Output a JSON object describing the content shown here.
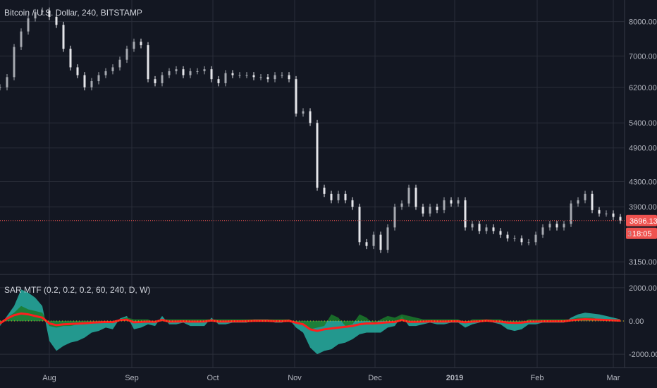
{
  "header": {
    "title": "Bitcoin / U.S. Dollar, 240, BITSTAMP"
  },
  "colors": {
    "background": "#131722",
    "grid": "#2a2e39",
    "candle_up": "#a6a9b0",
    "candle_down": "#e5e6ea",
    "price_line": "#ef5350",
    "price_tag": "#ef5350",
    "sar_teal": "#26a69a",
    "sar_green": "#1b7a2a",
    "sar_red": "#ff1e1e",
    "sar_yellow": "#d4c21b"
  },
  "price_tags": {
    "last_price": "3696.13",
    "countdown": "18:05",
    "partial_label": "3"
  },
  "indicator": {
    "label": "SAR MTF (0.2, 0.2, 0.2, 60, 240, D, W)"
  },
  "chart_data": [
    {
      "type": "line",
      "title": "Bitcoin / U.S. Dollar, 240, BITSTAMP",
      "xlabel": "",
      "ylabel": "",
      "ylim": [
        3000,
        8700
      ],
      "yticks": [
        "8000.00",
        "7000.00",
        "6200.00",
        "5400.00",
        "4900.00",
        "4300.00",
        "3900.00",
        "3150.00"
      ],
      "ytick_values": [
        8000,
        7000,
        6200,
        5400,
        4900,
        4300,
        3900,
        3150
      ],
      "xticks": [
        "Aug",
        "Sep",
        "Oct",
        "Nov",
        "Dec",
        "2019",
        "Feb",
        "Mar"
      ],
      "last_price": 3696.13,
      "series": [
        {
          "values": [
            6200,
            6450,
            7250,
            7700,
            8100,
            8300,
            8350,
            8150,
            7900,
            7200,
            6700,
            6500,
            6200,
            6350,
            6500,
            6600,
            6700,
            6900,
            7200,
            7400,
            7300,
            6400,
            6300,
            6500,
            6600,
            6650,
            6500,
            6600,
            6600,
            6650,
            6400,
            6300,
            6550,
            6500,
            6500,
            6500,
            6450,
            6450,
            6400,
            6500,
            6500,
            6400,
            5600,
            5650,
            5400,
            4200,
            4100,
            4000,
            4100,
            4000,
            3900,
            3400,
            3350,
            3500,
            3300,
            3600,
            3900,
            3950,
            4200,
            3900,
            3800,
            3900,
            3850,
            4000,
            3950,
            4000,
            3600,
            3650,
            3550,
            3600,
            3550,
            3500,
            3450,
            3450,
            3400,
            3400,
            3500,
            3600,
            3650,
            3600,
            3650,
            3950,
            4000,
            4100,
            3850,
            3800,
            3800,
            3750,
            3696
          ]
        }
      ]
    },
    {
      "type": "area",
      "title": "SAR MTF (0.2, 0.2, 0.2, 60, 240, D, W)",
      "xlabel": "",
      "ylabel": "",
      "ylim": [
        -2800,
        2800
      ],
      "yticks": [
        "2000.00",
        "0.00",
        "-2000.00"
      ],
      "ytick_values": [
        2000,
        0,
        -2000
      ],
      "series": [
        {
          "name": "teal",
          "values": [
            -300,
            300,
            900,
            1900,
            1700,
            1400,
            900,
            -1200,
            -1800,
            -1500,
            -1300,
            -1200,
            -1000,
            -700,
            -600,
            -400,
            -500,
            150,
            300,
            -500,
            -400,
            -200,
            -300,
            300,
            -200,
            -200,
            -100,
            -300,
            -300,
            -300,
            200,
            -200,
            -200,
            -100,
            -100,
            -100,
            100,
            100,
            100,
            -100,
            -100,
            100,
            -400,
            -700,
            -1600,
            -2000,
            -1800,
            -1700,
            -1400,
            -1300,
            -1100,
            -800,
            -700,
            -700,
            -700,
            -400,
            -300,
            300,
            -300,
            -300,
            -200,
            -100,
            -200,
            -200,
            -100,
            -100,
            -400,
            -200,
            -100,
            100,
            -100,
            -200,
            -500,
            -600,
            -500,
            -200,
            -200,
            -100,
            -100,
            -100,
            -100,
            200,
            400,
            500,
            450,
            400,
            300,
            200,
            100
          ]
        },
        {
          "name": "green",
          "values": [
            -200,
            200,
            500,
            900,
            700,
            600,
            500,
            -300,
            -400,
            -300,
            -300,
            -200,
            -200,
            -150,
            -100,
            -100,
            -100,
            100,
            200,
            100,
            100,
            100,
            -100,
            100,
            100,
            100,
            100,
            100,
            100,
            100,
            100,
            100,
            100,
            100,
            100,
            100,
            100,
            100,
            100,
            100,
            100,
            100,
            -100,
            -200,
            -500,
            -400,
            -300,
            400,
            200,
            -300,
            -200,
            400,
            200,
            -200,
            100,
            300,
            200,
            400,
            300,
            200,
            100,
            100,
            100,
            100,
            100,
            100,
            -100,
            100,
            100,
            100,
            100,
            100,
            -100,
            -100,
            -100,
            100,
            100,
            100,
            100,
            100,
            100,
            100,
            200,
            200,
            200,
            100,
            100,
            100,
            100
          ]
        },
        {
          "name": "red",
          "values": [
            -150,
            150,
            350,
            450,
            400,
            300,
            200,
            -150,
            -250,
            -200,
            -180,
            -160,
            -140,
            -100,
            -80,
            -60,
            -70,
            50,
            80,
            -80,
            -60,
            -40,
            -50,
            60,
            -40,
            -30,
            -20,
            -40,
            -40,
            -30,
            30,
            -30,
            -30,
            -20,
            -20,
            -10,
            10,
            10,
            10,
            -10,
            -10,
            10,
            -100,
            -200,
            -500,
            -600,
            -500,
            -450,
            -400,
            -350,
            -300,
            -200,
            -150,
            -150,
            -120,
            -80,
            -60,
            60,
            -50,
            -50,
            -40,
            -20,
            -30,
            -30,
            -20,
            -20,
            -80,
            -40,
            -20,
            20,
            -20,
            -40,
            -100,
            -120,
            -100,
            -40,
            -40,
            -20,
            -20,
            -20,
            -20,
            40,
            80,
            100,
            90,
            80,
            60,
            40,
            20
          ]
        }
      ]
    }
  ]
}
